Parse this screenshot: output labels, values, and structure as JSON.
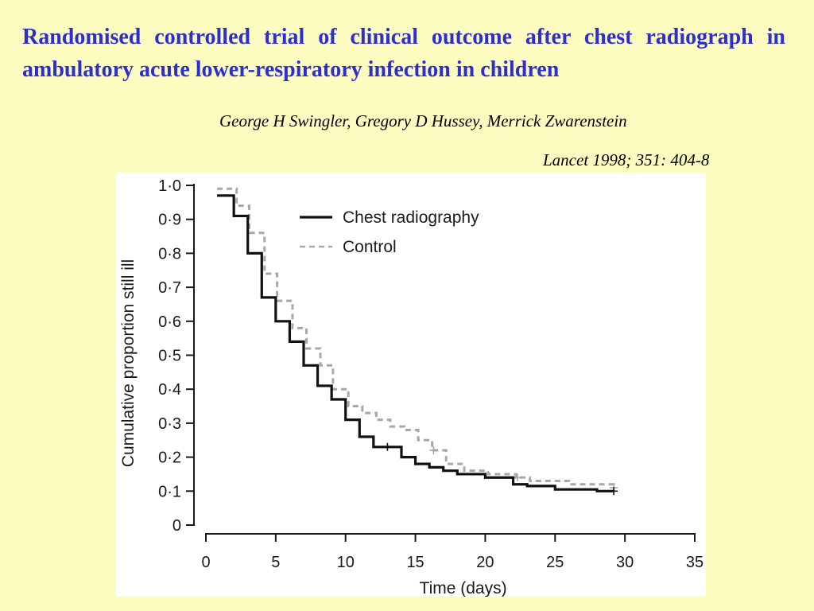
{
  "slide": {
    "title": "Randomised controlled trial of clinical outcome after chest radiograph in ambulatory acute lower-respiratory infection in children",
    "authors": "George H Swingler, Gregory D Hussey, Merrick Zwarenstein",
    "citation": "Lancet 1998; 351: 404-8",
    "background_color": "#fcfcc0",
    "title_color": "#2e2ecf"
  },
  "chart_data": {
    "type": "line",
    "subtype": "kaplan-meier step",
    "xlabel": "Time (days)",
    "ylabel": "Cumulative proportion still ill",
    "xlim": [
      0,
      35
    ],
    "ylim": [
      0,
      1.0
    ],
    "x_ticks": [
      0,
      5,
      10,
      15,
      20,
      25,
      30,
      35
    ],
    "x_tick_labels": [
      "0",
      "5",
      "10",
      "15",
      "20",
      "25",
      "30",
      "35"
    ],
    "y_ticks": [
      0,
      0.1,
      0.2,
      0.3,
      0.4,
      0.5,
      0.6,
      0.7,
      0.8,
      0.9,
      1.0
    ],
    "y_tick_labels": [
      "0",
      "0·1",
      "0·2",
      "0·3",
      "0·4",
      "0·5",
      "0·6",
      "0·7",
      "0·8",
      "0·9",
      "1·0"
    ],
    "grid": false,
    "legend_position": "top-right",
    "series": [
      {
        "name": "Chest radiography",
        "style": "solid",
        "color": "#111111",
        "x": [
          0.8,
          2,
          3,
          4,
          5,
          6,
          7,
          8,
          9,
          10,
          11,
          12,
          14,
          15,
          16,
          17,
          18,
          20,
          22,
          23,
          25,
          28,
          29.2
        ],
        "y": [
          0.97,
          0.91,
          0.8,
          0.67,
          0.6,
          0.54,
          0.47,
          0.41,
          0.37,
          0.31,
          0.26,
          0.23,
          0.2,
          0.18,
          0.17,
          0.16,
          0.15,
          0.14,
          0.12,
          0.115,
          0.105,
          0.1,
          0.1
        ],
        "censored_x": [
          13,
          29.2
        ],
        "censored_y": [
          0.23,
          0.1
        ]
      },
      {
        "name": "Control",
        "style": "dashed",
        "color": "#a8a8a8",
        "x": [
          0.8,
          2.2,
          3.1,
          4.2,
          5.1,
          6.2,
          7.2,
          8.2,
          9.1,
          10.2,
          11.2,
          12.2,
          13.2,
          14.2,
          15.2,
          16.2,
          17.2,
          18.5,
          20.2,
          22.2,
          23.2,
          26,
          29.2
        ],
        "y": [
          0.99,
          0.94,
          0.86,
          0.74,
          0.66,
          0.58,
          0.52,
          0.47,
          0.4,
          0.35,
          0.33,
          0.31,
          0.29,
          0.28,
          0.25,
          0.22,
          0.18,
          0.16,
          0.15,
          0.14,
          0.13,
          0.12,
          0.11
        ],
        "censored_x": [
          16.3,
          22.3,
          29.2
        ],
        "censored_y": [
          0.22,
          0.14,
          0.11
        ]
      }
    ]
  }
}
